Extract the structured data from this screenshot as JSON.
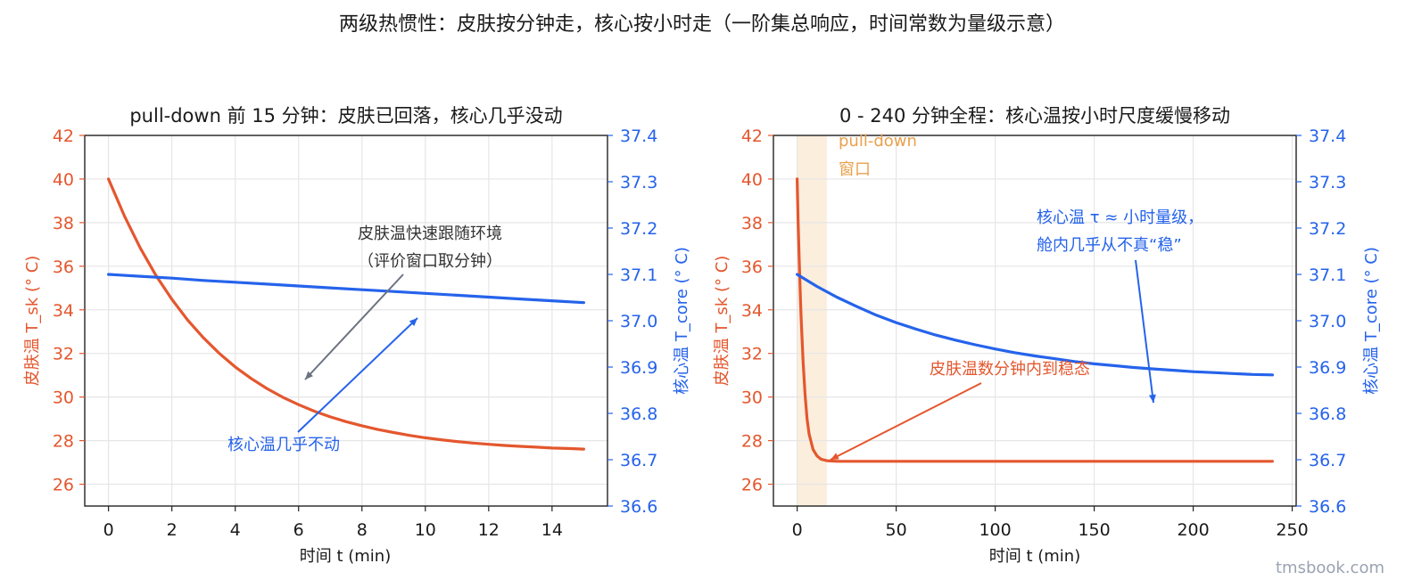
{
  "suptitle": "两级热惯性：皮肤按分钟走，核心按小时走（一阶集总响应，时间常数为量级示意）",
  "watermark": "tmsbook.com",
  "colors": {
    "skin": "#e4572e",
    "core": "#2563eb",
    "gray_arrow": "#6b7280",
    "window_fill": "#fbeedd",
    "window_text": "#e9a04b"
  },
  "chart_data": [
    {
      "type": "line",
      "title": "pull-down 前 15 分钟：皮肤已回落，核心几乎没动",
      "xlabel": "时间 t (min)",
      "ylabel_left": "皮肤温 T_sk (° C)",
      "ylabel_right": "核心温 T_core (° C)",
      "xlim": [
        -0.75,
        15.75
      ],
      "ylim_left": [
        25,
        42
      ],
      "ylim_right": [
        36.6,
        37.4
      ],
      "xticks": [
        "0",
        "2",
        "4",
        "6",
        "8",
        "10",
        "12",
        "14"
      ],
      "yticks_left": [
        "26",
        "28",
        "30",
        "32",
        "34",
        "36",
        "38",
        "40",
        "42"
      ],
      "yticks_right": [
        "36.6",
        "36.7",
        "36.8",
        "36.9",
        "37.0",
        "37.1",
        "37.2",
        "37.3",
        "37.4"
      ],
      "grid": true,
      "series": [
        {
          "name": "皮肤温",
          "axis": "left",
          "x": [
            0,
            0.5,
            1,
            1.5,
            2,
            2.5,
            3,
            3.5,
            4,
            4.5,
            5,
            5.5,
            6,
            6.5,
            7,
            7.5,
            8,
            8.5,
            9,
            9.5,
            10,
            10.5,
            11,
            11.5,
            12,
            12.5,
            13,
            13.5,
            14,
            14.5,
            15
          ],
          "y": [
            40.0,
            38.31,
            36.84,
            35.57,
            34.48,
            33.53,
            32.71,
            32.0,
            31.38,
            30.85,
            30.39,
            29.99,
            29.65,
            29.35,
            29.09,
            28.87,
            28.68,
            28.51,
            28.37,
            28.24,
            28.13,
            28.04,
            27.96,
            27.89,
            27.83,
            27.78,
            27.74,
            27.7,
            27.66,
            27.64,
            27.61
          ]
        },
        {
          "name": "核心温",
          "axis": "right",
          "x": [
            0,
            1,
            2,
            3,
            4,
            5,
            6,
            7,
            8,
            9,
            10,
            11,
            12,
            13,
            14,
            15
          ],
          "y": [
            37.1,
            37.096,
            37.092,
            37.087,
            37.083,
            37.079,
            37.075,
            37.071,
            37.067,
            37.063,
            37.059,
            37.055,
            37.051,
            37.047,
            37.043,
            37.039
          ]
        }
      ],
      "annotations": [
        {
          "lines": [
            "皮肤温快速跟随环境",
            "（评价窗口取分钟）"
          ],
          "color": "gray"
        },
        {
          "lines": [
            "核心温几乎不动"
          ],
          "color": "core"
        }
      ]
    },
    {
      "type": "line",
      "title": "0 - 240 分钟全程：核心温按小时尺度缓慢移动",
      "xlabel": "时间 t (min)",
      "ylabel_left": "皮肤温 T_sk (° C)",
      "ylabel_right": "核心温 T_core (° C)",
      "xlim": [
        -12,
        252
      ],
      "ylim_left": [
        25,
        42
      ],
      "ylim_right": [
        36.6,
        37.4
      ],
      "xticks": [
        "0",
        "50",
        "100",
        "150",
        "200",
        "250"
      ],
      "yticks_left": [
        "26",
        "28",
        "30",
        "32",
        "34",
        "36",
        "38",
        "40",
        "42"
      ],
      "yticks_right": [
        "36.6",
        "36.7",
        "36.8",
        "36.9",
        "37.0",
        "37.1",
        "37.2",
        "37.3",
        "37.4"
      ],
      "grid": true,
      "shaded_window": {
        "x": [
          0,
          15
        ],
        "label_lines": [
          "pull-down",
          "窗口"
        ]
      },
      "series": [
        {
          "name": "皮肤温",
          "axis": "left",
          "x": [
            0,
            0.5,
            1,
            1.5,
            2,
            3,
            4,
            5,
            6,
            8,
            10,
            12,
            15,
            20,
            30,
            60,
            100,
            150,
            200,
            240
          ],
          "y": [
            40.0,
            38.02,
            36.32,
            34.86,
            33.6,
            31.6,
            30.1,
            29.0,
            28.3,
            27.6,
            27.3,
            27.15,
            27.08,
            27.05,
            27.05,
            27.05,
            27.05,
            27.05,
            27.05,
            27.05
          ]
        },
        {
          "name": "核心温",
          "axis": "right",
          "x": [
            0,
            10,
            20,
            30,
            40,
            50,
            60,
            70,
            80,
            90,
            100,
            110,
            120,
            130,
            140,
            150,
            160,
            170,
            180,
            190,
            200,
            210,
            220,
            230,
            240
          ],
          "y": [
            37.1,
            37.074,
            37.051,
            37.031,
            37.012,
            36.996,
            36.982,
            36.969,
            36.958,
            36.948,
            36.939,
            36.931,
            36.924,
            36.918,
            36.912,
            36.907,
            36.903,
            36.899,
            36.896,
            36.893,
            36.89,
            36.888,
            36.886,
            36.884,
            36.883
          ]
        }
      ],
      "annotations": [
        {
          "lines": [
            "核心温 τ ≈ 小时量级，",
            "舱内几乎从不真“稳”"
          ],
          "color": "core"
        },
        {
          "lines": [
            "皮肤温数分钟内到稳态"
          ],
          "color": "skin"
        }
      ]
    }
  ]
}
